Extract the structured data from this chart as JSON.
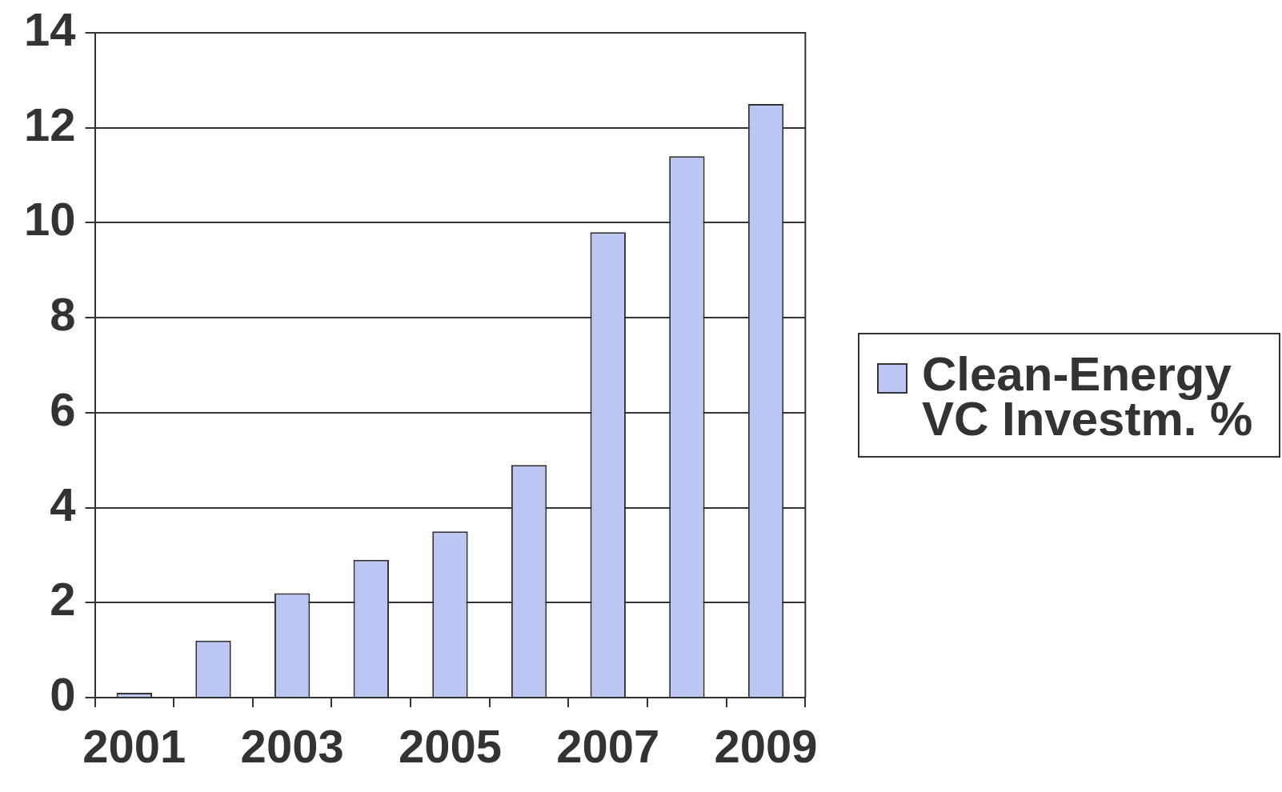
{
  "chart_data": {
    "type": "bar",
    "categories": [
      "2001",
      null,
      "2003",
      null,
      "2005",
      null,
      "2007",
      null,
      "2009"
    ],
    "series": [
      {
        "name": "Clean-Energy VC Investm. %",
        "color": "#bcc6f3",
        "values": [
          0.1,
          1.2,
          2.2,
          2.9,
          3.5,
          4.9,
          9.8,
          11.4,
          12.5
        ]
      }
    ],
    "ylim": [
      0,
      14
    ],
    "yticks": [
      0,
      2,
      4,
      6,
      8,
      10,
      12,
      14
    ],
    "grid": "y",
    "legend": "right"
  }
}
